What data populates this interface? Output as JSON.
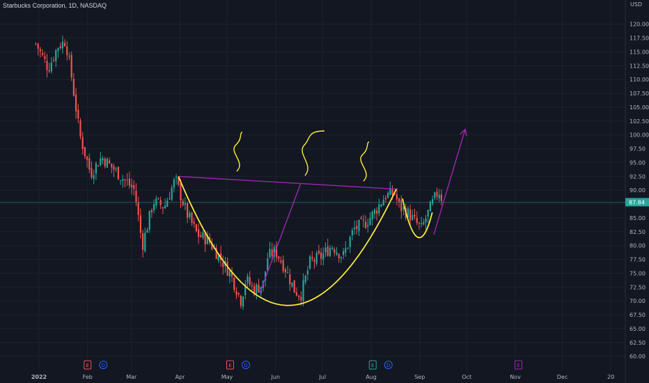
{
  "header": {
    "symbol_title": "Starbucks Corporation, 1D, NASDAQ"
  },
  "price_scale": {
    "currency": "USD",
    "last_price": "87.84"
  },
  "colors": {
    "background": "#131722",
    "up": "#26a69a",
    "down": "#ef5350",
    "pattern_line": "#9c27b0",
    "cup_curve": "#ffeb3b",
    "last_price_line": "#26a69a"
  },
  "markers": [
    {
      "letter": "E",
      "color": "#ef5350"
    },
    {
      "letter": "D",
      "color": "#2962ff"
    },
    {
      "letter": "E",
      "color": "#ef5350"
    },
    {
      "letter": "D",
      "color": "#2962ff"
    },
    {
      "letter": "E",
      "color": "#26a69a"
    },
    {
      "letter": "D",
      "color": "#2962ff"
    },
    {
      "letter": "E",
      "color": "#9c27b0"
    }
  ],
  "chart_data": {
    "type": "candlestick",
    "title": "Starbucks Corporation, 1D, NASDAQ",
    "y_unit": "USD",
    "ylim": [
      59.2,
      121.6
    ],
    "y_ticks": [
      "120.00",
      "117.50",
      "115.00",
      "112.50",
      "110.00",
      "107.50",
      "105.00",
      "102.50",
      "100.00",
      "97.50",
      "95.00",
      "92.50",
      "90.00",
      "87.50",
      "85.00",
      "82.50",
      "80.00",
      "77.50",
      "75.00",
      "72.50",
      "70.00",
      "67.50",
      "65.00",
      "62.50",
      "60.00"
    ],
    "x_ticks": [
      "2022",
      "Feb",
      "Mar",
      "Apr",
      "May",
      "Jun",
      "Jul",
      "Aug",
      "Sep",
      "Oct",
      "Nov",
      "Dec",
      "20"
    ],
    "last_price": 87.84,
    "close_keypoints": [
      [
        "2021-12-30",
        116.5
      ],
      [
        "2022-01-07",
        112
      ],
      [
        "2022-01-13",
        116
      ],
      [
        "2022-01-18",
        117
      ],
      [
        "2022-01-21",
        112
      ],
      [
        "2022-01-27",
        100
      ],
      [
        "2022-02-03",
        93
      ],
      [
        "2022-02-10",
        96
      ],
      [
        "2022-02-17",
        94
      ],
      [
        "2022-02-24",
        92
      ],
      [
        "2022-03-03",
        90
      ],
      [
        "2022-03-08",
        80
      ],
      [
        "2022-03-15",
        88
      ],
      [
        "2022-03-22",
        87
      ],
      [
        "2022-03-29",
        92
      ],
      [
        "2022-04-05",
        86
      ],
      [
        "2022-04-12",
        82
      ],
      [
        "2022-04-19",
        81
      ],
      [
        "2022-04-26",
        78
      ],
      [
        "2022-05-03",
        75
      ],
      [
        "2022-05-10",
        70
      ],
      [
        "2022-05-13",
        74
      ],
      [
        "2022-05-18",
        72
      ],
      [
        "2022-05-24",
        73
      ],
      [
        "2022-05-27",
        78
      ],
      [
        "2022-06-01",
        79
      ],
      [
        "2022-06-07",
        76
      ],
      [
        "2022-06-13",
        72
      ],
      [
        "2022-06-17",
        71
      ],
      [
        "2022-06-23",
        77
      ],
      [
        "2022-06-30",
        78
      ],
      [
        "2022-07-07",
        80
      ],
      [
        "2022-07-14",
        78
      ],
      [
        "2022-07-21",
        83
      ],
      [
        "2022-07-28",
        84
      ],
      [
        "2022-08-03",
        86
      ],
      [
        "2022-08-10",
        89
      ],
      [
        "2022-08-16",
        89.5
      ],
      [
        "2022-08-19",
        87
      ],
      [
        "2022-08-24",
        86
      ],
      [
        "2022-08-30",
        84
      ],
      [
        "2022-09-02",
        83
      ],
      [
        "2022-09-08",
        87
      ],
      [
        "2022-09-13",
        90
      ],
      [
        "2022-09-16",
        87.84
      ]
    ],
    "annotations": [
      {
        "type": "neckline",
        "from": [
          "2022-03-31",
          92.5
        ],
        "to": [
          "2022-08-17",
          90.2
        ]
      },
      {
        "type": "cup_curve",
        "start": [
          "2022-03-31",
          92.5
        ],
        "bottom": [
          "2022-06-06",
          69.2
        ],
        "end": [
          "2022-08-17",
          90.2
        ]
      },
      {
        "type": "handle_curve",
        "start": [
          "2022-08-21",
          88.5
        ],
        "bottom": [
          "2022-08-31",
          81.5
        ],
        "end": [
          "2022-09-09",
          86
        ]
      },
      {
        "type": "measured_move_line",
        "from": [
          "2022-05-22",
          71.5
        ],
        "to": [
          "2022-06-17",
          91.2
        ]
      },
      {
        "type": "target_arrow",
        "from": [
          "2022-09-10",
          82
        ],
        "to": [
          "2022-09-30",
          101
        ]
      },
      {
        "type": "steam_squiggles",
        "count": 3
      }
    ]
  }
}
